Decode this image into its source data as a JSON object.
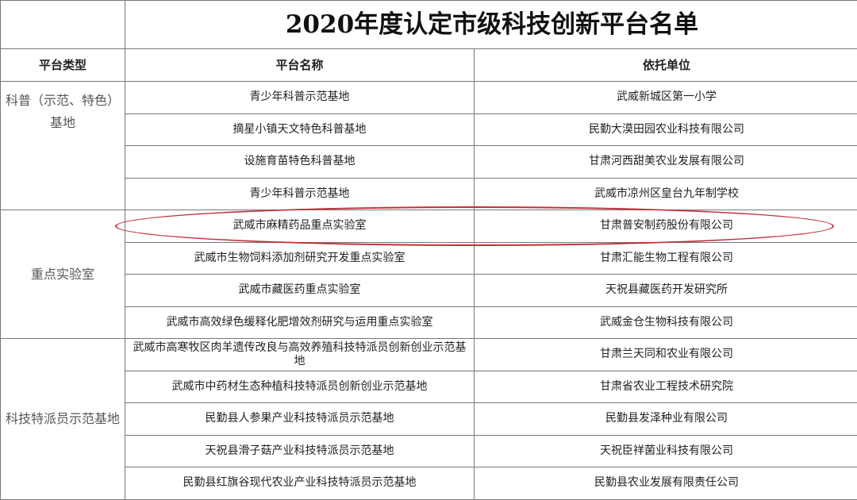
{
  "title": "2020年度认定市级科技创新平台名单",
  "headers": {
    "type": "平台类型",
    "name": "平台名称",
    "org": "依托单位"
  },
  "highlight_color": "#c0303a",
  "groups": [
    {
      "category": "科普（示范、特色）基地",
      "rows": [
        {
          "name": "青少年科普示范基地",
          "org": "武威新城区第一小学"
        },
        {
          "name": "摘星小镇天文特色科普基地",
          "org": "民勤大漠田园农业科技有限公司"
        },
        {
          "name": "设施育苗特色科普基地",
          "org": "甘肃河西甜美农业发展有限公司"
        },
        {
          "name": "青少年科普示范基地",
          "org": "武威市凉州区皇台九年制学校"
        }
      ]
    },
    {
      "category": "重点实验室",
      "rows": [
        {
          "name": "武威市麻精药品重点实验室",
          "org": "甘肃普安制药股份有限公司"
        },
        {
          "name": "武威市生物饲料添加剂研究开发重点实验室",
          "org": "甘肃汇能生物工程有限公司"
        },
        {
          "name": "武威市藏医药重点实验室",
          "org": "天祝县藏医药开发研究所"
        },
        {
          "name": "武威市高效绿色缓释化肥增效剂研究与运用重点实验室",
          "org": "武威金仓生物科技有限公司"
        }
      ]
    },
    {
      "category": "科技特派员示范基地",
      "rows": [
        {
          "name": "武威市高寒牧区肉羊遗传改良与高效养殖科技特派员创新创业示范基地",
          "org": "甘肃兰天同和农业有限公司"
        },
        {
          "name": "武威市中药材生态种植科技特派员创新创业示范基地",
          "org": "甘肃省农业工程技术研究院"
        },
        {
          "name": "民勤县人参果产业科技特派员示范基地",
          "org": "民勤县发泽种业有限公司"
        },
        {
          "name": "天祝县滑子菇产业科技特派员示范基地",
          "org": "天祝臣祥菌业科技有限公司"
        },
        {
          "name": "民勤县红旗谷现代农业产业科技特派员示范基地",
          "org": "民勤县农业发展有限责任公司"
        }
      ]
    }
  ]
}
